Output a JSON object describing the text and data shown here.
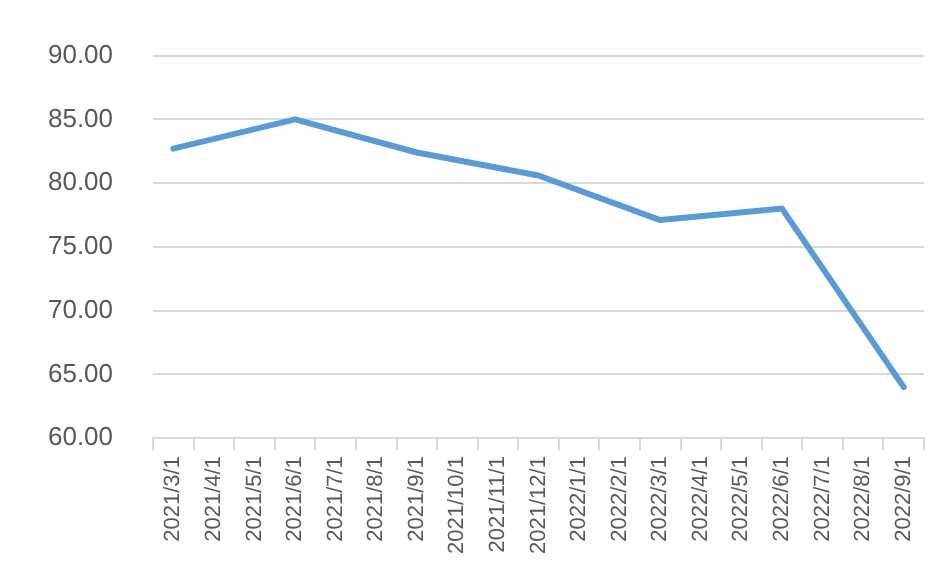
{
  "chart_data": {
    "type": "line",
    "categories": [
      "2021/3/1",
      "2021/4/1",
      "2021/5/1",
      "2021/6/1",
      "2021/7/1",
      "2021/8/1",
      "2021/9/1",
      "2021/10/1",
      "2021/11/1",
      "2021/12/1",
      "2022/1/1",
      "2022/2/1",
      "2022/3/1",
      "2022/4/1",
      "2022/5/1",
      "2022/6/1",
      "2022/7/1",
      "2022/8/1",
      "2022/9/1"
    ],
    "series": [
      {
        "color": "#5b9bd5",
        "x": [
          "2021/3/1",
          "2021/6/1",
          "2021/9/1",
          "2021/12/1",
          "2022/3/1",
          "2022/6/1",
          "2022/9/1"
        ],
        "values": [
          82.7,
          85.0,
          82.4,
          80.6,
          77.1,
          78.0,
          64.0
        ]
      }
    ],
    "ylim": [
      60,
      90
    ],
    "yticks": [
      {
        "value": 60,
        "label": "60.00"
      },
      {
        "value": 65,
        "label": "65.00"
      },
      {
        "value": 70,
        "label": "70.00"
      },
      {
        "value": 75,
        "label": "75.00"
      },
      {
        "value": 80,
        "label": "80.00"
      },
      {
        "value": 85,
        "label": "85.00"
      },
      {
        "value": 90,
        "label": "90.00"
      }
    ],
    "grid": "y",
    "legend": false,
    "marker": "none",
    "line_style": "solid"
  }
}
